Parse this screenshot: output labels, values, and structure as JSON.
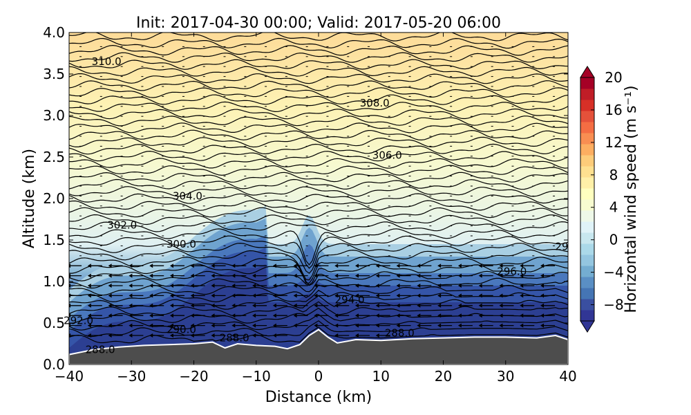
{
  "chart_data": {
    "type": "heatmap",
    "title": "Init: 2017-04-30 00:00; Valid: 2017-05-20 06:00",
    "xlabel": "Distance (km)",
    "ylabel": "Altitude (km)",
    "xlim": [
      -40,
      40
    ],
    "ylim": [
      0.0,
      4.0
    ],
    "x_ticks": [
      -40,
      -30,
      -20,
      -10,
      0,
      10,
      20,
      30,
      40
    ],
    "x_tick_labels": [
      "−40",
      "−30",
      "−20",
      "−10",
      "0",
      "10",
      "20",
      "30",
      "40"
    ],
    "y_ticks": [
      0.0,
      0.5,
      1.0,
      1.5,
      2.0,
      2.5,
      3.0,
      3.5,
      4.0
    ],
    "y_tick_labels": [
      "0.0",
      "0.5",
      "1.0",
      "1.5",
      "2.0",
      "2.5",
      "3.0",
      "3.5",
      "4.0"
    ],
    "colorbar": {
      "label": "Horizontal wind speed (m s⁻¹)",
      "range": [
        -10,
        20
      ],
      "ticks": [
        -8,
        -4,
        0,
        4,
        8,
        12,
        16,
        20
      ],
      "tick_labels": [
        "−8",
        "−4",
        "0",
        "4",
        "8",
        "12",
        "16",
        "20"
      ],
      "extend": "both"
    },
    "contour_labels": [
      {
        "text": "310.0",
        "x": -34,
        "y": 3.65
      },
      {
        "text": "308.0",
        "x": 9,
        "y": 3.15
      },
      {
        "text": "306.0",
        "x": 11,
        "y": 2.52
      },
      {
        "text": "304.0",
        "x": -21,
        "y": 2.03
      },
      {
        "text": "302.0",
        "x": -31.5,
        "y": 1.68
      },
      {
        "text": "300.0",
        "x": -22,
        "y": 1.45
      },
      {
        "text": "29",
        "x": 39,
        "y": 1.42
      },
      {
        "text": "296.0",
        "x": 31,
        "y": 1.12
      },
      {
        "text": "294.0",
        "x": 5,
        "y": 0.78
      },
      {
        "text": "292.0",
        "x": -38.5,
        "y": 0.53
      },
      {
        "text": "290.0",
        "x": -22,
        "y": 0.42
      },
      {
        "text": "288.0",
        "x": -13.5,
        "y": 0.32
      },
      {
        "text": "288.0",
        "x": 13,
        "y": 0.38
      },
      {
        "text": "288.0",
        "x": -35,
        "y": 0.18
      }
    ],
    "terrain_height_km": {
      "x": [
        -40,
        -36,
        -32,
        -28,
        -24,
        -20,
        -17,
        -15,
        -13,
        -10,
        -7,
        -5,
        -3,
        -1.5,
        0,
        1.5,
        3,
        6,
        10,
        15,
        20,
        25,
        30,
        35,
        38,
        40
      ],
      "y": [
        0.12,
        0.18,
        0.21,
        0.23,
        0.24,
        0.25,
        0.27,
        0.2,
        0.25,
        0.23,
        0.22,
        0.19,
        0.24,
        0.35,
        0.42,
        0.33,
        0.26,
        0.3,
        0.29,
        0.31,
        0.32,
        0.33,
        0.33,
        0.32,
        0.35,
        0.3
      ]
    }
  }
}
